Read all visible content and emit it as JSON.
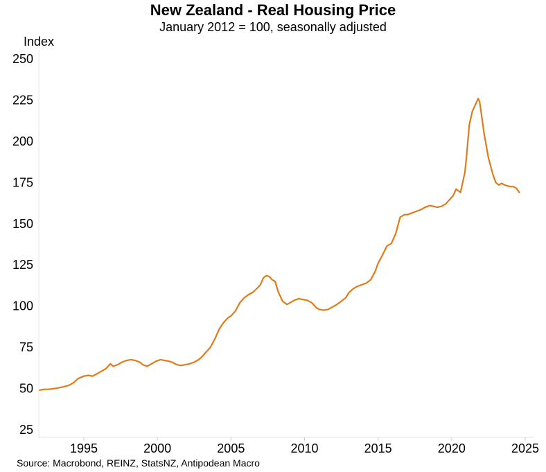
{
  "chart_data": {
    "type": "line",
    "title": "New Zealand - Real Housing Price",
    "subtitle": "January 2012 = 100, seasonally adjusted",
    "ylabel": "Index",
    "xlabel": "",
    "source": "Source: Macrobond, REINZ, StatsNZ, Antipodean Macro",
    "xlim": [
      1992.0,
      2025.0
    ],
    "ylim": [
      20,
      250
    ],
    "yticks": [
      25,
      50,
      75,
      100,
      125,
      150,
      175,
      200,
      225,
      250
    ],
    "xticks": [
      1995,
      2000,
      2005,
      2010,
      2015,
      2020,
      2025
    ],
    "grid": false,
    "line_color": "#e07b1a",
    "series": [
      {
        "x": [
          1992.0,
          1992.3,
          1992.6,
          1993.0,
          1993.3,
          1993.6,
          1994.0,
          1994.3,
          1994.6,
          1995.0,
          1995.3,
          1995.6,
          1995.9,
          1996.2,
          1996.5,
          1996.8,
          1997.0,
          1997.3,
          1997.6,
          1997.9,
          1998.2,
          1998.5,
          1998.8,
          1999.0,
          1999.3,
          1999.6,
          1999.9,
          2000.2,
          2000.5,
          2000.8,
          2001.0,
          2001.3,
          2001.6,
          2001.9,
          2002.2,
          2002.5,
          2002.8,
          2003.0,
          2003.3,
          2003.6,
          2003.9,
          2004.2,
          2004.5,
          2004.8,
          2005.0,
          2005.3,
          2005.6,
          2005.9,
          2006.2,
          2006.5,
          2006.8,
          2007.0,
          2007.2,
          2007.4,
          2007.6,
          2007.8,
          2008.0,
          2008.2,
          2008.5,
          2008.8,
          2009.0,
          2009.3,
          2009.6,
          2009.9,
          2010.2,
          2010.5,
          2010.8,
          2011.0,
          2011.3,
          2011.6,
          2011.9,
          2012.2,
          2012.5,
          2012.8,
          2013.0,
          2013.3,
          2013.6,
          2013.9,
          2014.2,
          2014.5,
          2014.8,
          2015.0,
          2015.3,
          2015.6,
          2015.9,
          2016.2,
          2016.5,
          2016.8,
          2017.0,
          2017.3,
          2017.6,
          2017.9,
          2018.2,
          2018.5,
          2018.8,
          2019.0,
          2019.3,
          2019.6,
          2019.9,
          2020.1,
          2020.3,
          2020.6,
          2020.9,
          2021.0,
          2021.2,
          2021.4,
          2021.6,
          2021.8,
          2021.9,
          2022.0,
          2022.2,
          2022.5,
          2022.8,
          2023.0,
          2023.2,
          2023.4,
          2023.6,
          2023.8,
          2024.0,
          2024.2,
          2024.4,
          2024.6
        ],
        "values": [
          49,
          49.5,
          49.5,
          50,
          50.5,
          51,
          52,
          53.5,
          56,
          57.5,
          58,
          57.5,
          59,
          60.5,
          62,
          65,
          63.5,
          64.5,
          66,
          67,
          67.5,
          67,
          66,
          64.5,
          63.5,
          65,
          66.5,
          67.5,
          67,
          66.5,
          66,
          64.5,
          64,
          64.5,
          65,
          66,
          67.5,
          69,
          72,
          75,
          80,
          86,
          90,
          93,
          94,
          97,
          102,
          105,
          107,
          108.5,
          111,
          113,
          117,
          118.5,
          118,
          116,
          115,
          109,
          103,
          101,
          102,
          103.5,
          104.5,
          104,
          103.5,
          102,
          99,
          98,
          97.5,
          98,
          99.5,
          101,
          103,
          105,
          108,
          110.5,
          112,
          113,
          114,
          116,
          121,
          126,
          131,
          136.5,
          138,
          144,
          154,
          155.5,
          155.5,
          156.5,
          157.5,
          158.5,
          160,
          161,
          160.5,
          160,
          160.5,
          162,
          165,
          167,
          171,
          169,
          181,
          190,
          210,
          218,
          222,
          226,
          224,
          218,
          205,
          190,
          180,
          175,
          173.5,
          174.5,
          173.5,
          173,
          172.5,
          172.5,
          171.5,
          169
        ]
      }
    ]
  }
}
